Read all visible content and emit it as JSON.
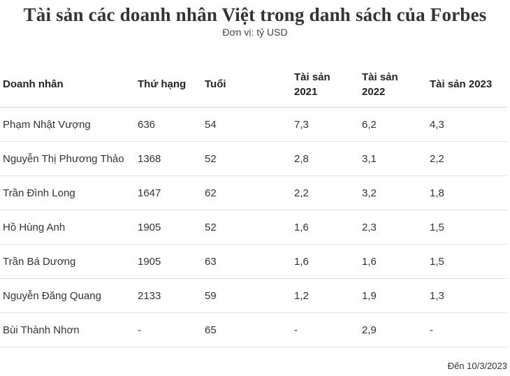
{
  "header": {
    "title": "Tài sản các doanh nhân Việt trong danh sách của Forbes",
    "subtitle": "Đơn vị: tỷ USD"
  },
  "table": {
    "columns": [
      "Doanh nhân",
      "Thứ hạng",
      "Tuổi",
      "Tài sản 2021",
      "Tài sản 2022",
      "Tài sản 2023"
    ],
    "rows": [
      [
        "Phạm Nhật Vượng",
        "636",
        "54",
        "7,3",
        "6,2",
        "4,3"
      ],
      [
        "Nguyễn Thị Phương Thảo",
        "1368",
        "52",
        "2,8",
        "3,1",
        "2,2"
      ],
      [
        "Trần Đình Long",
        "1647",
        "62",
        "2,2",
        "3,2",
        "1,8"
      ],
      [
        "Hồ Hùng Anh",
        "1905",
        "52",
        "1,6",
        "2,3",
        "1,5"
      ],
      [
        "Trần Bá Dương",
        "1905",
        "63",
        "1,6",
        "1,6",
        "1,5"
      ],
      [
        "Nguyễn Đăng Quang",
        "2133",
        "59",
        "1,2",
        "1,9",
        "1,3"
      ],
      [
        "Bùi Thành Nhơn",
        "-",
        "65",
        "-",
        "2,9",
        "-"
      ]
    ]
  },
  "footnote": "Đến 10/3/2023",
  "chart_data": {
    "type": "table",
    "title": "Tài sản các doanh nhân Việt trong danh sách của Forbes",
    "subtitle": "Đơn vị: tỷ USD",
    "columns": [
      "Doanh nhân",
      "Thứ hạng",
      "Tuổi",
      "Tài sản 2021",
      "Tài sản 2022",
      "Tài sản 2023"
    ],
    "rows": [
      {
        "name": "Phạm Nhật Vượng",
        "rank": 636,
        "age": 54,
        "assets_2021": 7.3,
        "assets_2022": 6.2,
        "assets_2023": 4.3
      },
      {
        "name": "Nguyễn Thị Phương Thảo",
        "rank": 1368,
        "age": 52,
        "assets_2021": 2.8,
        "assets_2022": 3.1,
        "assets_2023": 2.2
      },
      {
        "name": "Trần Đình Long",
        "rank": 1647,
        "age": 62,
        "assets_2021": 2.2,
        "assets_2022": 3.2,
        "assets_2023": 1.8
      },
      {
        "name": "Hồ Hùng Anh",
        "rank": 1905,
        "age": 52,
        "assets_2021": 1.6,
        "assets_2022": 2.3,
        "assets_2023": 1.5
      },
      {
        "name": "Trần Bá Dương",
        "rank": 1905,
        "age": 63,
        "assets_2021": 1.6,
        "assets_2022": 1.6,
        "assets_2023": 1.5
      },
      {
        "name": "Nguyễn Đăng Quang",
        "rank": 2133,
        "age": 59,
        "assets_2021": 1.2,
        "assets_2022": 1.9,
        "assets_2023": 1.3
      },
      {
        "name": "Bùi Thành Nhơn",
        "rank": null,
        "age": 65,
        "assets_2021": null,
        "assets_2022": 2.9,
        "assets_2023": null
      }
    ],
    "footnote": "Đến 10/3/2023"
  }
}
